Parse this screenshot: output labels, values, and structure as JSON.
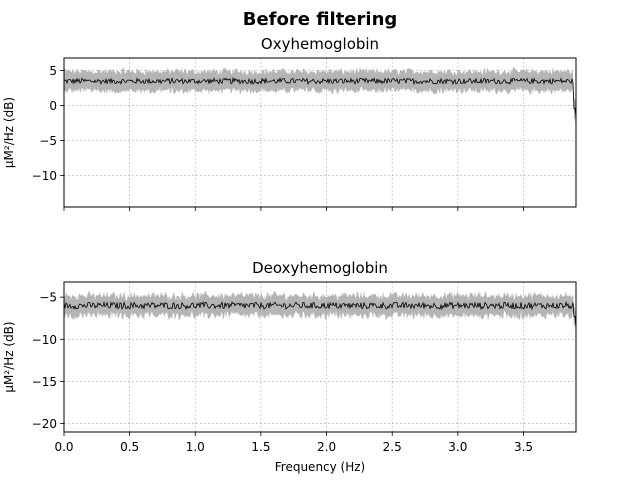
{
  "figure": {
    "suptitle": "Before filtering"
  },
  "chart_data": [
    {
      "type": "line",
      "title": "Oxyhemoglobin",
      "xlabel": "",
      "ylabel": "µM²/Hz (dB)",
      "xlim": [
        0,
        3.9
      ],
      "ylim": [
        -14.5,
        6.8
      ],
      "xticks": [
        0.0,
        0.5,
        1.0,
        1.5,
        2.0,
        2.5,
        3.0,
        3.5
      ],
      "xtick_labels_shown": false,
      "yticks": [
        5,
        0,
        -5,
        -10
      ],
      "ytick_labels": [
        "5",
        "0",
        "−5",
        "−10"
      ],
      "grid": true,
      "mean_level": 3.5,
      "mean_jitter": 0.4,
      "band_half_width": 1.3,
      "band_jitter": 0.5,
      "tail_drop_to": -1.6,
      "line_color": "#000000",
      "band_color": "#a8a8a8"
    },
    {
      "type": "line",
      "title": "Deoxyhemoglobin",
      "xlabel": "Frequency (Hz)",
      "ylabel": "µM²/Hz (dB)",
      "xlim": [
        0,
        3.9
      ],
      "ylim": [
        -21,
        -3.2
      ],
      "xticks": [
        0.0,
        0.5,
        1.0,
        1.5,
        2.0,
        2.5,
        3.0,
        3.5
      ],
      "xtick_labels": [
        "0.0",
        "0.5",
        "1.0",
        "1.5",
        "2.0",
        "2.5",
        "3.0",
        "3.5"
      ],
      "xtick_labels_shown": true,
      "yticks": [
        -5,
        -10,
        -15,
        -20
      ],
      "ytick_labels": [
        "−5",
        "−10",
        "−15",
        "−20"
      ],
      "grid": true,
      "mean_level": -6.0,
      "mean_jitter": 0.4,
      "band_half_width": 1.1,
      "band_jitter": 0.5,
      "tail_drop_to": -8.5,
      "line_color": "#000000",
      "band_color": "#a8a8a8"
    }
  ]
}
